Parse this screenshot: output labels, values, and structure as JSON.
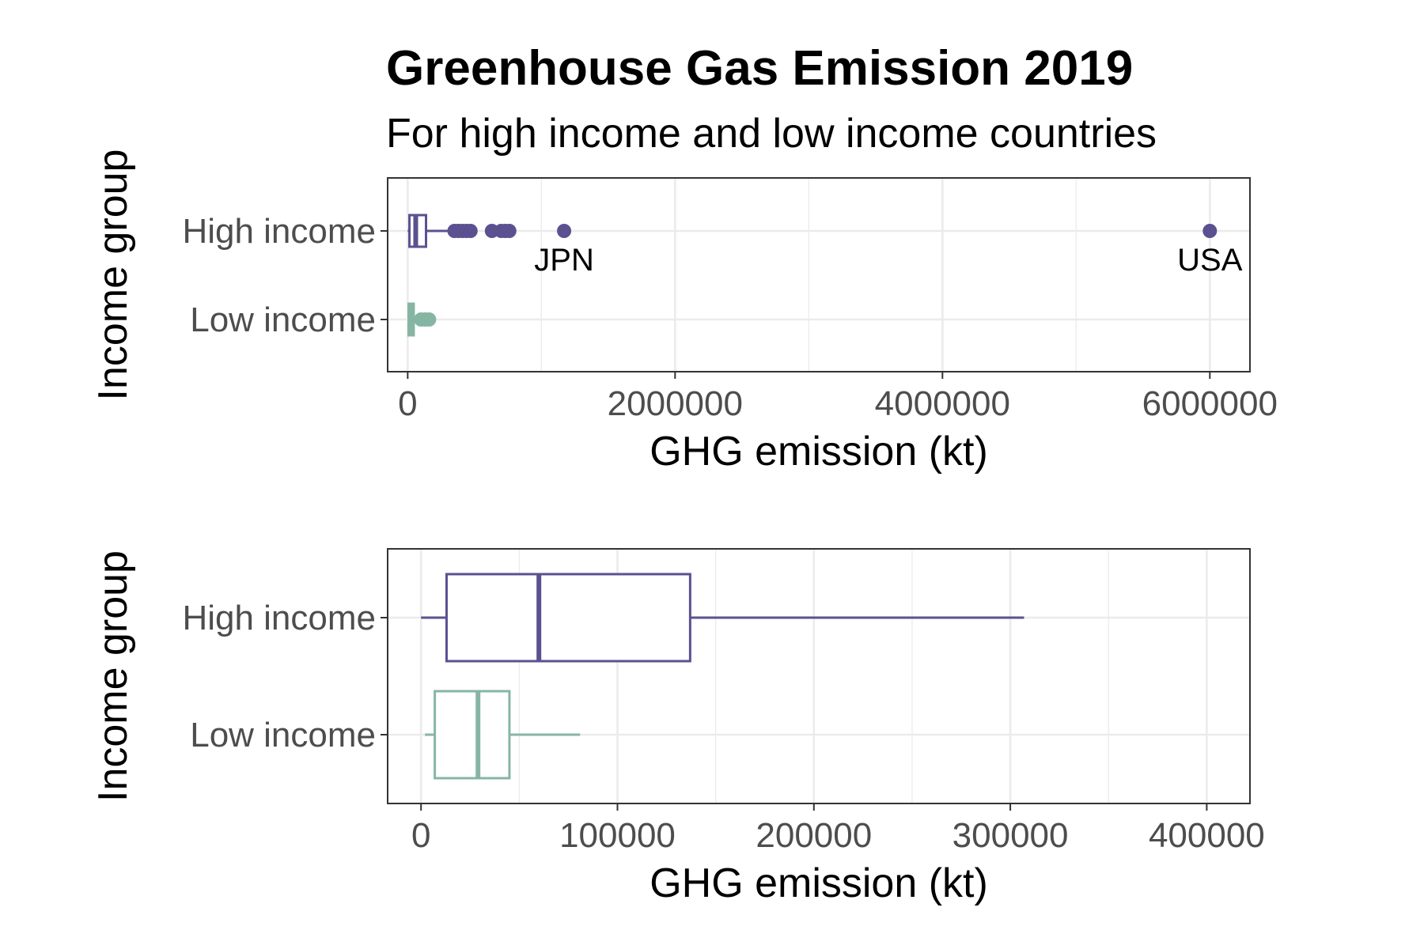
{
  "title": "Greenhouse Gas Emission 2019",
  "subtitle": "For high income and low income countries",
  "colors": {
    "high_income": "#5b5190",
    "low_income": "#87b5a4",
    "grid": "#ebebeb",
    "panel_border": "#333333"
  },
  "chart_data": [
    {
      "type": "boxplot",
      "orientation": "horizontal",
      "xlabel": "GHG emission (kt)",
      "ylabel": "Income group",
      "xlim": [
        -150000,
        6300000
      ],
      "x_ticks": [
        0,
        2000000,
        4000000,
        6000000
      ],
      "x_tick_labels": [
        "0",
        "2000000",
        "4000000",
        "6000000"
      ],
      "categories": [
        "High income",
        "Low income"
      ],
      "grid": true,
      "boxes": [
        {
          "group": "High income",
          "min": 0,
          "q1": 13000,
          "median": 60000,
          "q3": 137000,
          "max": 307000,
          "outliers": [
            350000,
            380000,
            410000,
            440000,
            470000,
            630000,
            700000,
            730000,
            760000,
            1170000,
            6000000
          ]
        },
        {
          "group": "Low income",
          "min": 2000,
          "q1": 7000,
          "median": 29000,
          "q3": 45000,
          "max": 81000,
          "outliers": [
            100000,
            130000,
            160000
          ]
        }
      ],
      "annotations": [
        {
          "label": "JPN",
          "x": 1170000,
          "group": "High income"
        },
        {
          "label": "USA",
          "x": 6000000,
          "group": "High income"
        }
      ]
    },
    {
      "type": "boxplot",
      "orientation": "horizontal",
      "xlabel": "GHG emission (kt)",
      "ylabel": "Income group",
      "xlim": [
        -17000,
        422000
      ],
      "x_ticks": [
        0,
        100000,
        200000,
        300000,
        400000
      ],
      "x_tick_labels": [
        "0",
        "100000",
        "200000",
        "300000",
        "400000"
      ],
      "categories": [
        "High income",
        "Low income"
      ],
      "grid": true,
      "boxes": [
        {
          "group": "High income",
          "min": 0,
          "q1": 13000,
          "median": 60000,
          "q3": 137000,
          "max": 307000,
          "outliers": []
        },
        {
          "group": "Low income",
          "min": 2000,
          "q1": 7000,
          "median": 29000,
          "q3": 45000,
          "max": 81000,
          "outliers": []
        }
      ],
      "annotations": []
    }
  ]
}
